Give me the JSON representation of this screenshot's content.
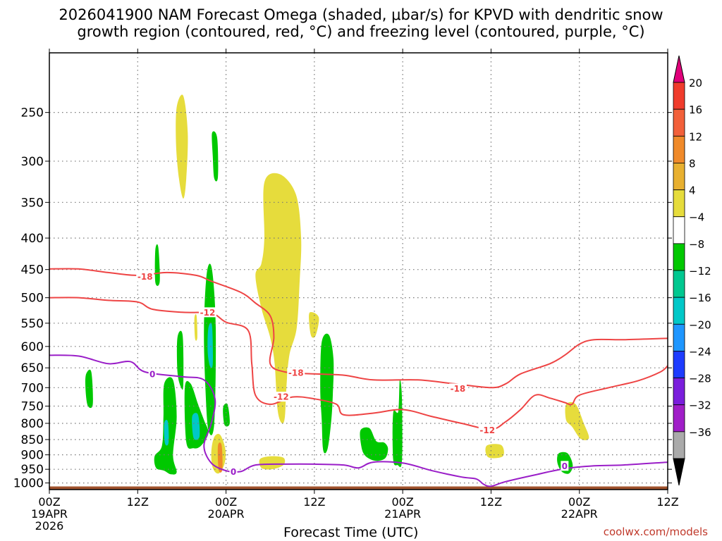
{
  "title_line1": "2026041900 NAM Forecast Omega (shaded, μbar/s) for KPVD with dendritic snow",
  "title_line2": "growth region (contoured, red, °C) and freezing level (contoured, purple, °C)",
  "credit": "coolwx.com/models",
  "chart_data": {
    "type": "heatmap",
    "title": "2026041900 NAM Forecast Omega (shaded, μbar/s) for KPVD with dendritic snow growth region (contoured, red, °C) and freezing level (contoured, purple, °C)",
    "xlabel": "Forecast Time (UTC)",
    "ylabel": "",
    "x_range_hours": [
      0,
      84
    ],
    "y_range_hpa": [
      1025,
      200
    ],
    "y_scale": "log",
    "grid": true,
    "y_ticks": [
      250,
      300,
      350,
      400,
      450,
      500,
      550,
      600,
      650,
      700,
      750,
      800,
      850,
      900,
      950,
      1000
    ],
    "x_ticks": [
      {
        "hour": 0,
        "lines": [
          "00Z",
          "19APR",
          "2026"
        ]
      },
      {
        "hour": 12,
        "lines": [
          "12Z"
        ]
      },
      {
        "hour": 24,
        "lines": [
          "00Z",
          "20APR"
        ]
      },
      {
        "hour": 36,
        "lines": [
          "12Z"
        ]
      },
      {
        "hour": 48,
        "lines": [
          "00Z",
          "21APR"
        ]
      },
      {
        "hour": 60,
        "lines": [
          "12Z"
        ]
      },
      {
        "hour": 72,
        "lines": [
          "00Z",
          "22APR"
        ]
      },
      {
        "hour": 84,
        "lines": [
          "12Z"
        ]
      }
    ],
    "colorbar": {
      "labels": [
        "20",
        "16",
        "12",
        "8",
        "4",
        "−4",
        "−8",
        "−12",
        "−16",
        "−20",
        "−24",
        "−28",
        "−32",
        "−36"
      ],
      "colors": [
        "#e0007a",
        "#f03c2c",
        "#f2603a",
        "#f08a2a",
        "#e8b030",
        "#e6dc3c",
        "#ffffff",
        "#00c800",
        "#00c890",
        "#00c8c8",
        "#1e96ff",
        "#1e3cff",
        "#7a1edc",
        "#a01ec8",
        "#aaaaaa",
        "#000000"
      ]
    },
    "contours": [
      {
        "label": "-18",
        "color": "#ee4444",
        "label_pos": {
          "hour": 13,
          "p": 462
        },
        "points": [
          [
            0,
            449
          ],
          [
            4,
            449
          ],
          [
            8,
            455
          ],
          [
            12,
            460
          ],
          [
            16,
            455
          ],
          [
            20,
            460
          ],
          [
            22,
            470
          ],
          [
            26,
            490
          ],
          [
            28,
            510
          ],
          [
            30,
            535
          ],
          [
            30.5,
            580
          ],
          [
            30,
            640
          ],
          [
            32,
            660
          ],
          [
            36,
            665
          ],
          [
            40,
            668
          ],
          [
            44,
            680
          ],
          [
            50,
            680
          ],
          [
            55,
            690
          ],
          [
            60,
            700
          ],
          [
            62,
            690
          ],
          [
            64,
            665
          ],
          [
            68,
            640
          ],
          [
            70,
            620
          ],
          [
            72,
            595
          ],
          [
            74,
            585
          ],
          [
            78,
            585
          ],
          [
            84,
            582
          ]
        ]
      },
      {
        "label": "-12",
        "color": "#ee4444",
        "label_pos": {
          "hour": 21.5,
          "p": 528
        },
        "points": [
          [
            0,
            500
          ],
          [
            4,
            500
          ],
          [
            8,
            505
          ],
          [
            12,
            508
          ],
          [
            14,
            522
          ],
          [
            18,
            528
          ],
          [
            22,
            530
          ],
          [
            24,
            548
          ],
          [
            27,
            565
          ],
          [
            27.5,
            640
          ],
          [
            28,
            720
          ],
          [
            30,
            745
          ],
          [
            33,
            725
          ],
          [
            36,
            730
          ],
          [
            39,
            745
          ],
          [
            40,
            775
          ],
          [
            44,
            770
          ],
          [
            48,
            760
          ],
          [
            52,
            780
          ],
          [
            56,
            800
          ],
          [
            60,
            818
          ],
          [
            62,
            795
          ],
          [
            64,
            760
          ],
          [
            66,
            720
          ],
          [
            68,
            728
          ],
          [
            70,
            740
          ],
          [
            71,
            745
          ],
          [
            72,
            720
          ],
          [
            76,
            700
          ],
          [
            80,
            682
          ],
          [
            83,
            660
          ],
          [
            84,
            645
          ]
        ]
      },
      {
        "label": "-18",
        "color": "#ee4444",
        "label_pos": {
          "hour": 33.5,
          "p": 662
        },
        "points": []
      },
      {
        "label": "-12",
        "color": "#ee4444",
        "label_pos": {
          "hour": 31.5,
          "p": 724
        },
        "points": []
      },
      {
        "label": "-18",
        "color": "#ee4444",
        "label_pos": {
          "hour": 55.5,
          "p": 702
        },
        "points": []
      },
      {
        "label": "-12",
        "color": "#ee4444",
        "label_pos": {
          "hour": 59.5,
          "p": 820
        },
        "points": []
      },
      {
        "label": "0",
        "color": "#9a1ec8",
        "label_pos": {
          "hour": 14,
          "p": 665
        },
        "points": [
          [
            0,
            620
          ],
          [
            4,
            622
          ],
          [
            8,
            640
          ],
          [
            11,
            635
          ],
          [
            13,
            660
          ],
          [
            18,
            672
          ],
          [
            21,
            680
          ],
          [
            22.5,
            730
          ],
          [
            22,
            800
          ],
          [
            21,
            870
          ],
          [
            22,
            928
          ],
          [
            24,
            955
          ],
          [
            26,
            958
          ],
          [
            28,
            935
          ],
          [
            32,
            932
          ],
          [
            36,
            932
          ],
          [
            40,
            935
          ],
          [
            42,
            945
          ],
          [
            44,
            925
          ],
          [
            48,
            928
          ],
          [
            52,
            955
          ],
          [
            56,
            978
          ],
          [
            58,
            985
          ],
          [
            59,
            1005
          ],
          [
            60,
            1012
          ],
          [
            62,
            995
          ],
          [
            66,
            970
          ],
          [
            70,
            948
          ],
          [
            74,
            938
          ],
          [
            78,
            935
          ],
          [
            84,
            925
          ]
        ]
      },
      {
        "label": "0",
        "color": "#9a1ec8",
        "label_pos": {
          "hour": 25,
          "p": 958
        },
        "points": []
      },
      {
        "label": "0",
        "color": "#9a1ec8",
        "label_pos": {
          "hour": 70,
          "p": 938
        },
        "points": []
      }
    ],
    "shaded_regions": [
      {
        "color": "#e6dc3c",
        "points": [
          [
            17.3,
            245
          ],
          [
            18.2,
            235
          ],
          [
            18.8,
            270
          ],
          [
            18.6,
            320
          ],
          [
            18.2,
            345
          ],
          [
            17.6,
            320
          ],
          [
            17.2,
            280
          ]
        ]
      },
      {
        "color": "#00c800",
        "points": [
          [
            22.1,
            270
          ],
          [
            22.8,
            275
          ],
          [
            22.9,
            318
          ],
          [
            22.4,
            320
          ],
          [
            22.2,
            295
          ]
        ]
      },
      {
        "color": "#e6dc3c",
        "points": [
          [
            29.2,
            325
          ],
          [
            31.3,
            315
          ],
          [
            33.5,
            340
          ],
          [
            34.2,
            400
          ],
          [
            34.0,
            470
          ],
          [
            33.6,
            560
          ],
          [
            32.6,
            620
          ],
          [
            32.2,
            700
          ],
          [
            32.0,
            780
          ],
          [
            31.6,
            800
          ],
          [
            31.0,
            760
          ],
          [
            30.6,
            640
          ],
          [
            30.0,
            580
          ],
          [
            28.8,
            520
          ],
          [
            28.0,
            460
          ],
          [
            28.8,
            440
          ],
          [
            29.2,
            400
          ]
        ]
      },
      {
        "color": "#e6dc3c",
        "points": [
          [
            35.4,
            528
          ],
          [
            36.6,
            538
          ],
          [
            36.2,
            575
          ],
          [
            35.6,
            578
          ],
          [
            35.3,
            550
          ]
        ]
      },
      {
        "color": "#00c800",
        "points": [
          [
            14.4,
            418
          ],
          [
            14.8,
            414
          ],
          [
            15.0,
            470
          ],
          [
            14.4,
            472
          ]
        ]
      },
      {
        "color": "#e6dc3c",
        "points": [
          [
            19.7,
            540
          ],
          [
            20.0,
            535
          ],
          [
            20.1,
            580
          ],
          [
            19.8,
            583
          ]
        ]
      },
      {
        "color": "#00c800",
        "points": [
          [
            21.4,
            455
          ],
          [
            22.1,
            450
          ],
          [
            22.6,
            560
          ],
          [
            22.4,
            800
          ],
          [
            21.6,
            820
          ],
          [
            21.2,
            700
          ],
          [
            21.0,
            560
          ]
        ]
      },
      {
        "color": "#00c8c8",
        "points": [
          [
            21.6,
            560
          ],
          [
            22.1,
            555
          ],
          [
            22.2,
            640
          ],
          [
            21.8,
            645
          ],
          [
            21.5,
            610
          ]
        ]
      },
      {
        "color": "#00c800",
        "points": [
          [
            5.0,
            665
          ],
          [
            5.7,
            660
          ],
          [
            5.9,
            745
          ],
          [
            5.2,
            748
          ],
          [
            4.9,
            700
          ]
        ]
      },
      {
        "color": "#00c800",
        "points": [
          [
            17.4,
            580
          ],
          [
            18.1,
            575
          ],
          [
            18.2,
            690
          ],
          [
            17.9,
            700
          ],
          [
            17.4,
            660
          ]
        ]
      },
      {
        "color": "#00c800",
        "points": [
          [
            15.6,
            690
          ],
          [
            16.8,
            680
          ],
          [
            17.3,
            780
          ],
          [
            16.8,
            900
          ],
          [
            17.3,
            960
          ],
          [
            16.5,
            968
          ],
          [
            15.6,
            955
          ],
          [
            14.5,
            945
          ],
          [
            14.3,
            905
          ],
          [
            15.3,
            870
          ],
          [
            15.5,
            780
          ]
        ]
      },
      {
        "color": "#00c8c8",
        "points": [
          [
            15.6,
            800
          ],
          [
            16.1,
            795
          ],
          [
            16.2,
            860
          ],
          [
            15.7,
            862
          ]
        ]
      },
      {
        "color": "#00c800",
        "points": [
          [
            18.4,
            700
          ],
          [
            19.2,
            690
          ],
          [
            20.2,
            745
          ],
          [
            21.0,
            790
          ],
          [
            21.6,
            830
          ],
          [
            20.6,
            870
          ],
          [
            19.6,
            878
          ],
          [
            18.6,
            858
          ]
        ]
      },
      {
        "color": "#00c8c8",
        "points": [
          [
            19.4,
            780
          ],
          [
            20.2,
            775
          ],
          [
            20.4,
            840
          ],
          [
            19.6,
            845
          ]
        ]
      },
      {
        "color": "#00c800",
        "points": [
          [
            23.6,
            755
          ],
          [
            24.2,
            745
          ],
          [
            24.5,
            800
          ],
          [
            23.8,
            805
          ]
        ]
      },
      {
        "color": "#e6dc3c",
        "points": [
          [
            22.4,
            842
          ],
          [
            23.2,
            835
          ],
          [
            23.9,
            880
          ],
          [
            23.8,
            930
          ],
          [
            23.0,
            965
          ],
          [
            22.2,
            945
          ],
          [
            22.0,
            890
          ]
        ]
      },
      {
        "color": "#f08a2a",
        "points": [
          [
            22.9,
            870
          ],
          [
            23.4,
            868
          ],
          [
            23.5,
            950
          ],
          [
            23.0,
            952
          ]
        ]
      },
      {
        "color": "#e6dc3c",
        "points": [
          [
            28.6,
            915
          ],
          [
            30.0,
            905
          ],
          [
            31.8,
            910
          ],
          [
            31.8,
            935
          ],
          [
            30.2,
            950
          ],
          [
            28.8,
            945
          ]
        ]
      },
      {
        "color": "#00c800",
        "points": [
          [
            37.0,
            590
          ],
          [
            38.0,
            575
          ],
          [
            38.6,
            630
          ],
          [
            38.5,
            720
          ],
          [
            38.3,
            790
          ],
          [
            37.8,
            880
          ],
          [
            37.2,
            885
          ],
          [
            37.0,
            790
          ],
          [
            36.8,
            700
          ]
        ]
      },
      {
        "color": "#00c800",
        "points": [
          [
            42.3,
            820
          ],
          [
            43.5,
            815
          ],
          [
            44.4,
            855
          ],
          [
            45.5,
            860
          ],
          [
            46.0,
            880
          ],
          [
            45.6,
            912
          ],
          [
            44.2,
            920
          ],
          [
            42.8,
            900
          ],
          [
            42.3,
            860
          ]
        ]
      },
      {
        "color": "#00c800",
        "points": [
          [
            46.7,
            770
          ],
          [
            47.4,
            765
          ],
          [
            47.6,
            680
          ],
          [
            47.9,
            730
          ],
          [
            47.9,
            920
          ],
          [
            47.3,
            935
          ],
          [
            46.7,
            915
          ]
        ]
      },
      {
        "color": "#e6dc3c",
        "points": [
          [
            59.4,
            870
          ],
          [
            61.4,
            868
          ],
          [
            61.6,
            905
          ],
          [
            59.6,
            908
          ]
        ]
      },
      {
        "color": "#e6dc3c",
        "points": [
          [
            70.2,
            745
          ],
          [
            71.5,
            745
          ],
          [
            72.6,
            800
          ],
          [
            73.3,
            845
          ],
          [
            72.2,
            848
          ],
          [
            71.0,
            810
          ],
          [
            70.2,
            790
          ]
        ]
      },
      {
        "color": "#00c800",
        "points": [
          [
            69.2,
            895
          ],
          [
            70.4,
            895
          ],
          [
            71.1,
            935
          ],
          [
            70.6,
            965
          ],
          [
            69.6,
            958
          ],
          [
            69.0,
            925
          ]
        ]
      }
    ]
  }
}
